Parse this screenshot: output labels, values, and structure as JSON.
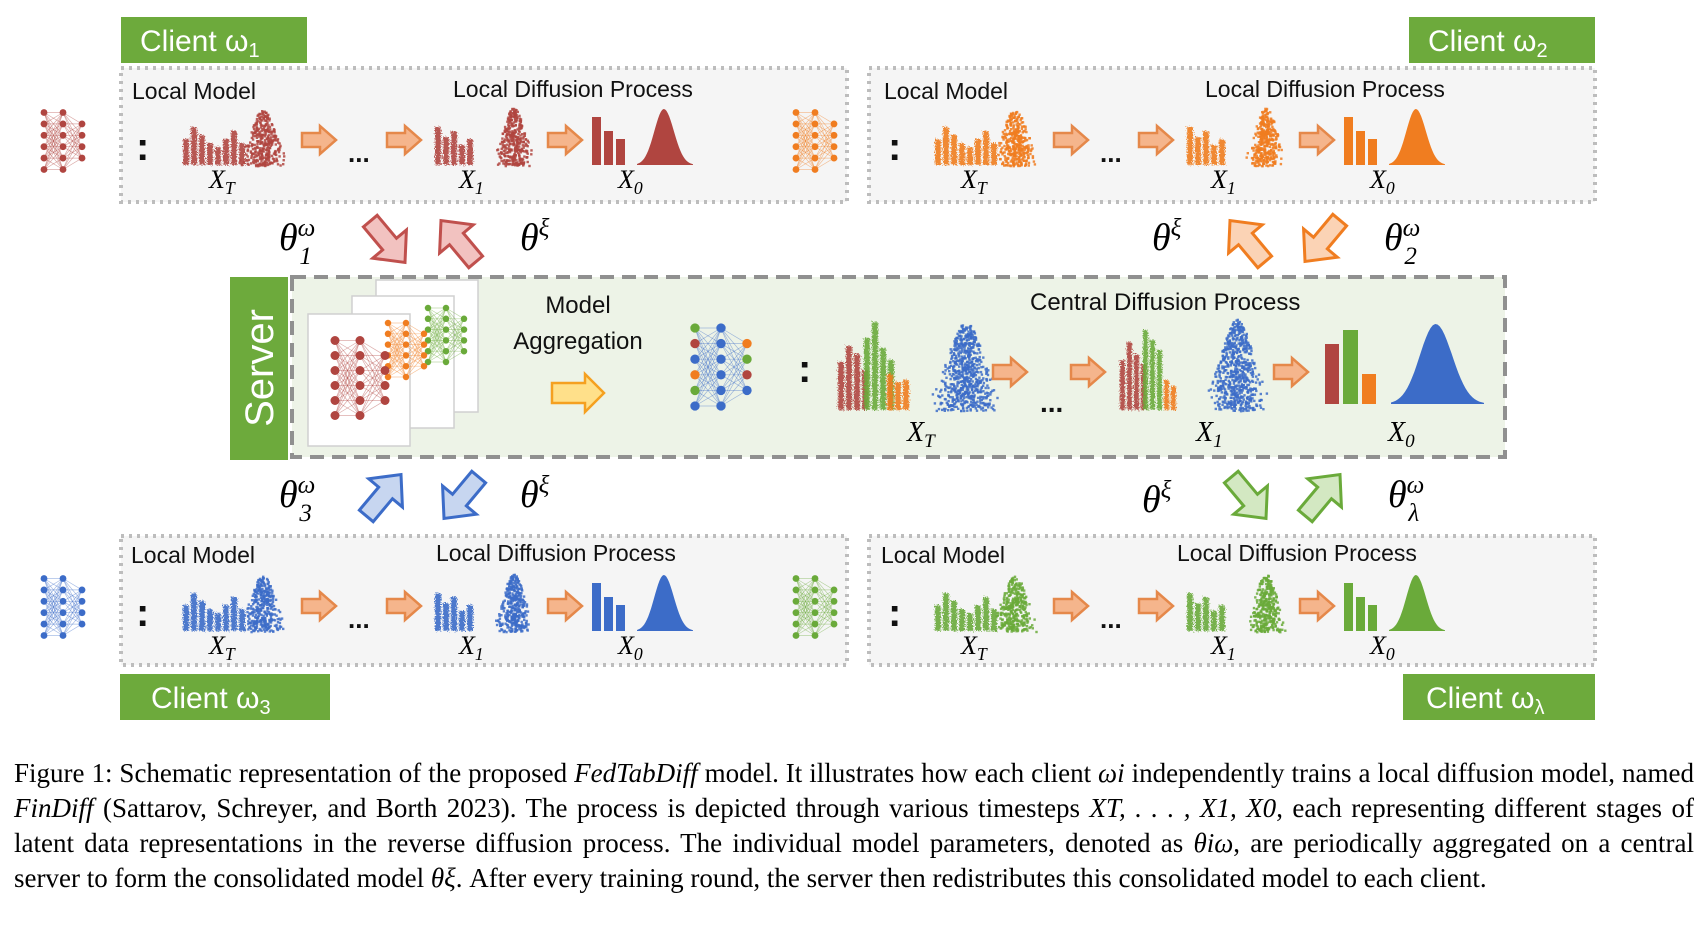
{
  "colors": {
    "red": "#B04540",
    "orange": "#F07D20",
    "blue": "#3C6CC8",
    "green": "#6AAA3A",
    "label_green": "#6DAA3C",
    "arrow_fill": "#F5B58C",
    "arrow_stroke": "#E5884A",
    "server_panel": "#EDF3E7"
  },
  "diagram": {
    "local_model_label": "Local Model",
    "local_process_label": "Local Diffusion Process",
    "central_process_label": "Central Diffusion Process",
    "aggregation_line1": "Model",
    "aggregation_line2": "Aggregation",
    "server_label": "Server",
    "colon": ":",
    "ellipsis": "...",
    "step_T": "X",
    "step_T_sub": "T",
    "step_1": "X",
    "step_1_sub": "1",
    "step_0": "X",
    "step_0_sub": "0",
    "theta": "θ",
    "xi": "ξ",
    "omega": "ω",
    "clients": [
      {
        "label": "Client ω",
        "sub": "1",
        "theta_sub": "1"
      },
      {
        "label": "Client ω",
        "sub": "2",
        "theta_sub": "2"
      },
      {
        "label": "Client ω",
        "sub": "3",
        "theta_sub": "3"
      },
      {
        "label": "Client ω",
        "sub": "λ",
        "theta_sub": "λ"
      }
    ]
  },
  "caption": {
    "figure_label": "Figure 1:",
    "part1": " Schematic representation of the proposed ",
    "model_name": "FedTabDiff",
    "part2": " model. It illustrates how each client ",
    "client_symbol": "ωi",
    "part3": " independently trains a local diffusion model, named ",
    "local_model_name": "FinDiff",
    "part4": " (Sattarov, Schreyer, and Borth 2023). The process is depicted through various timesteps ",
    "timesteps": "XT, . . . , X1, X0",
    "part5": ", each representing different stages of latent data representations in the reverse diffusion process. The individual model parameters, denoted as ",
    "param_symbol": "θiω",
    "part6": ", are periodically aggregated on a central server to form the consolidated model ",
    "consolidated_symbol": "θξ",
    "part7": ". After every training round, the server then redistributes this consolidated model to each client."
  }
}
